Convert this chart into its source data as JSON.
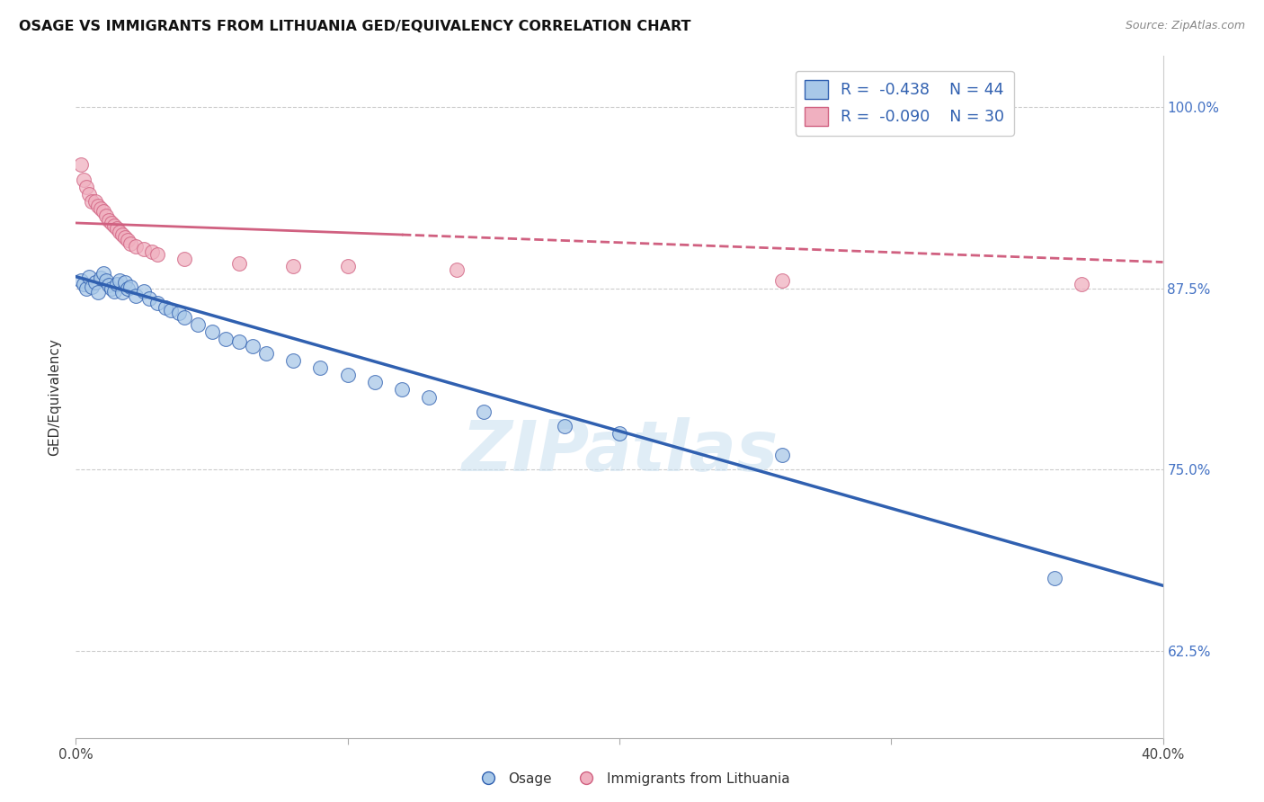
{
  "title": "OSAGE VS IMMIGRANTS FROM LITHUANIA GED/EQUIVALENCY CORRELATION CHART",
  "source": "Source: ZipAtlas.com",
  "ylabel": "GED/Equivalency",
  "yticks": [
    0.625,
    0.75,
    0.875,
    1.0
  ],
  "ytick_labels": [
    "62.5%",
    "75.0%",
    "87.5%",
    "100.0%"
  ],
  "xlim": [
    0.0,
    0.4
  ],
  "ylim": [
    0.565,
    1.035
  ],
  "legend_r1": "-0.438",
  "legend_n1": "44",
  "legend_r2": "-0.090",
  "legend_n2": "30",
  "color_blue": "#a8c8e8",
  "color_pink": "#f0b0c0",
  "color_blue_line": "#3060b0",
  "color_pink_line": "#d06080",
  "watermark": "ZIPatlas",
  "osage_x": [
    0.002,
    0.003,
    0.004,
    0.005,
    0.006,
    0.007,
    0.008,
    0.009,
    0.01,
    0.011,
    0.012,
    0.013,
    0.014,
    0.015,
    0.016,
    0.017,
    0.018,
    0.019,
    0.02,
    0.022,
    0.025,
    0.027,
    0.03,
    0.033,
    0.035,
    0.038,
    0.04,
    0.045,
    0.05,
    0.055,
    0.06,
    0.065,
    0.07,
    0.08,
    0.09,
    0.1,
    0.11,
    0.12,
    0.13,
    0.15,
    0.18,
    0.2,
    0.26,
    0.36
  ],
  "osage_y": [
    0.88,
    0.878,
    0.875,
    0.883,
    0.876,
    0.879,
    0.872,
    0.882,
    0.885,
    0.88,
    0.877,
    0.875,
    0.873,
    0.878,
    0.88,
    0.872,
    0.879,
    0.875,
    0.876,
    0.87,
    0.873,
    0.868,
    0.865,
    0.862,
    0.86,
    0.858,
    0.855,
    0.85,
    0.845,
    0.84,
    0.838,
    0.835,
    0.83,
    0.825,
    0.82,
    0.815,
    0.81,
    0.805,
    0.8,
    0.79,
    0.78,
    0.775,
    0.76,
    0.675
  ],
  "lithuania_x": [
    0.002,
    0.003,
    0.004,
    0.005,
    0.006,
    0.007,
    0.008,
    0.009,
    0.01,
    0.011,
    0.012,
    0.013,
    0.014,
    0.015,
    0.016,
    0.017,
    0.018,
    0.019,
    0.02,
    0.022,
    0.025,
    0.028,
    0.03,
    0.04,
    0.06,
    0.08,
    0.1,
    0.14,
    0.26,
    0.37
  ],
  "lithuania_y": [
    0.96,
    0.95,
    0.945,
    0.94,
    0.935,
    0.935,
    0.932,
    0.93,
    0.928,
    0.925,
    0.922,
    0.92,
    0.918,
    0.916,
    0.914,
    0.912,
    0.91,
    0.908,
    0.906,
    0.904,
    0.902,
    0.9,
    0.898,
    0.895,
    0.892,
    0.89,
    0.89,
    0.888,
    0.88,
    0.878
  ],
  "blue_line_x": [
    0.0,
    0.4
  ],
  "blue_line_y": [
    0.883,
    0.67
  ],
  "pink_line_x": [
    0.0,
    0.4
  ],
  "pink_line_y": [
    0.92,
    0.893
  ]
}
